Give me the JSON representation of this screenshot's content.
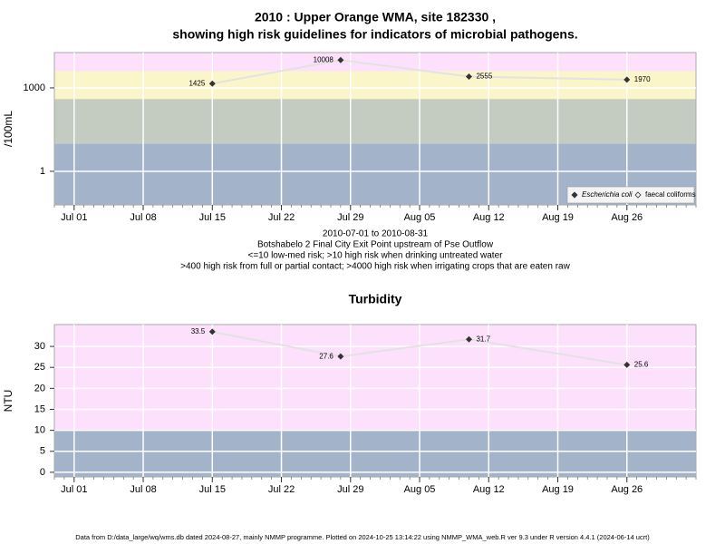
{
  "chart_data": [
    {
      "type": "line",
      "title_lines": [
        "2010 : Upper Orange WMA, site 182330 ,",
        "showing high risk guidelines for indicators of microbial pathogens."
      ],
      "y_label": "/100mL",
      "x": [
        "2010-07-15",
        "2010-07-28",
        "2010-08-10",
        "2010-08-26"
      ],
      "xlim": [
        "2010-06-29",
        "2010-09-02"
      ],
      "xticks": [
        {
          "value": "2010-07-01",
          "label": "Jul 01"
        },
        {
          "value": "2010-07-08",
          "label": "Jul 08"
        },
        {
          "value": "2010-07-15",
          "label": "Jul 15"
        },
        {
          "value": "2010-07-22",
          "label": "Jul 22"
        },
        {
          "value": "2010-07-29",
          "label": "Jul 29"
        },
        {
          "value": "2010-08-05",
          "label": "Aug 05"
        },
        {
          "value": "2010-08-12",
          "label": "Aug 12"
        },
        {
          "value": "2010-08-19",
          "label": "Aug 19"
        },
        {
          "value": "2010-08-26",
          "label": "Aug 26"
        }
      ],
      "log_y": true,
      "ylim": [
        0.062,
        18600
      ],
      "yticks": [
        1,
        1000
      ],
      "grid": true,
      "band_breaks": [
        10,
        400,
        4000
      ],
      "band_colors": [
        "#a3b3ca",
        "#c4ccc1",
        "#fbf5ca",
        "#fde0fb"
      ],
      "series": [
        {
          "name": "Escherichia coli",
          "color": "#333333",
          "values": [
            1425,
            10008,
            2555,
            1970
          ]
        },
        {
          "name": "faecal coliforms",
          "color": "#333333",
          "values": [
            null,
            null,
            null,
            null
          ]
        }
      ],
      "legend": "bottom-right",
      "notes": [
        "2010-07-01 to 2010-08-31",
        "Botshabelo 2 Final City Exit Point upstream of Pse Outflow",
        "<=10 low-med risk; >10 high risk when drinking untreated water",
        ">400 high risk from full or partial contact; >4000 high risk when irrigating crops that are eaten raw"
      ]
    },
    {
      "type": "line",
      "title_lines": [
        "Turbidity"
      ],
      "y_label": "NTU",
      "x": [
        "2010-07-15",
        "2010-07-28",
        "2010-08-10",
        "2010-08-26"
      ],
      "xlim": [
        "2010-06-29",
        "2010-09-02"
      ],
      "xticks": [
        {
          "value": "2010-07-01",
          "label": "Jul 01"
        },
        {
          "value": "2010-07-08",
          "label": "Jul 08"
        },
        {
          "value": "2010-07-15",
          "label": "Jul 15"
        },
        {
          "value": "2010-07-22",
          "label": "Jul 22"
        },
        {
          "value": "2010-07-29",
          "label": "Jul 29"
        },
        {
          "value": "2010-08-05",
          "label": "Aug 05"
        },
        {
          "value": "2010-08-12",
          "label": "Aug 12"
        },
        {
          "value": "2010-08-19",
          "label": "Aug 19"
        },
        {
          "value": "2010-08-26",
          "label": "Aug 26"
        }
      ],
      "log_y": false,
      "ylim": [
        -1.1,
        35.2
      ],
      "yticks": [
        0,
        5,
        10,
        15,
        20,
        25,
        30
      ],
      "grid": true,
      "band_breaks": [
        10
      ],
      "band_colors": [
        "#a3b3ca",
        "#fde0fb"
      ],
      "series": [
        {
          "name": "Turbidity",
          "color": "#333333",
          "values": [
            33.5,
            27.6,
            31.7,
            25.6
          ]
        }
      ]
    }
  ],
  "footer": "Data from D:/data_large/wq/wms.db dated 2024-08-27, mainly NMMP programme. Plotted on 2024-10-25 13:14:22 using NMMP_WMA_web.R ver 9.3 under R version 4.4.1 (2024-06-14 ucrt)"
}
